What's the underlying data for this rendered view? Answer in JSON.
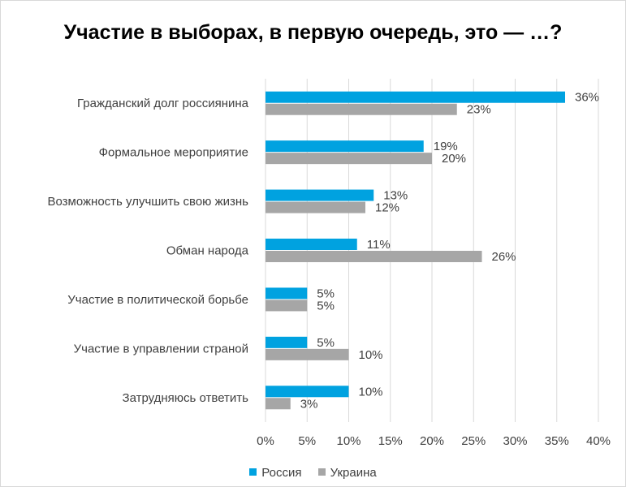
{
  "chart_data": {
    "type": "bar",
    "orientation": "horizontal",
    "title": "Участие в выборах, в первую очередь, это — …?",
    "categories": [
      "Гражданский долг россиянина",
      "Формальное мероприятие",
      "Возможность улучшить свою жизнь",
      "Обман народа",
      "Участие в политической борьбе",
      "Участие в управлении страной",
      "Затрудняюсь ответить"
    ],
    "series": [
      {
        "name": "Россия",
        "color": "#00a2e0",
        "values": [
          36,
          19,
          13,
          11,
          5,
          5,
          10
        ]
      },
      {
        "name": "Украина",
        "color": "#a6a6a6",
        "values": [
          23,
          20,
          12,
          26,
          5,
          10,
          3
        ]
      }
    ],
    "xlim": [
      0,
      40
    ],
    "xticks": [
      0,
      5,
      10,
      15,
      20,
      25,
      30,
      35,
      40
    ],
    "tick_suffix": "%",
    "grid": true,
    "legend_position": "bottom"
  }
}
